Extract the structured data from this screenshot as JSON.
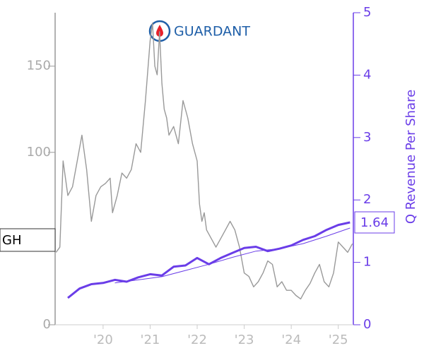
{
  "chart_data": {
    "type": "line",
    "ticker": "GH",
    "logo_text": "GUARDANT",
    "y2_label": "Q Revenue Per Share",
    "xlim": [
      2018.98,
      2025.32
    ],
    "xticks": [
      {
        "value": 2020,
        "label": "'20"
      },
      {
        "value": 2021,
        "label": "'21"
      },
      {
        "value": 2022,
        "label": "'22"
      },
      {
        "value": 2023,
        "label": "'23"
      },
      {
        "value": 2024,
        "label": "'24"
      },
      {
        "value": 2025,
        "label": "'25"
      }
    ],
    "ylim": [
      0,
      181
    ],
    "yticks": [
      0,
      100,
      150
    ],
    "y2lim": [
      0,
      5
    ],
    "y2ticks": [
      0,
      1,
      2,
      3,
      4,
      5
    ],
    "series": [
      {
        "color": "#999999",
        "x": [
          2019.0,
          2019.08,
          2019.15,
          2019.25,
          2019.35,
          2019.45,
          2019.55,
          2019.65,
          2019.75,
          2019.85,
          2019.95,
          2020.05,
          2020.15,
          2020.2,
          2020.3,
          2020.4,
          2020.5,
          2020.6,
          2020.7,
          2020.8,
          2020.9,
          2021.0,
          2021.05,
          2021.1,
          2021.15,
          2021.2,
          2021.25,
          2021.3,
          2021.35,
          2021.4,
          2021.5,
          2021.6,
          2021.7,
          2021.8,
          2021.9,
          2022.0,
          2022.05,
          2022.1,
          2022.15,
          2022.2,
          2022.3,
          2022.4,
          2022.5,
          2022.6,
          2022.7,
          2022.8,
          2022.9,
          2023.0,
          2023.1,
          2023.2,
          2023.3,
          2023.4,
          2023.5,
          2023.6,
          2023.7,
          2023.8,
          2023.9,
          2024.0,
          2024.1,
          2024.2,
          2024.3,
          2024.4,
          2024.5,
          2024.6,
          2024.7,
          2024.8,
          2024.9,
          2025.0,
          2025.1,
          2025.2,
          2025.3
        ],
        "values": [
          42,
          45,
          95,
          75,
          80,
          95,
          110,
          90,
          60,
          75,
          80,
          82,
          85,
          65,
          75,
          88,
          85,
          90,
          105,
          100,
          130,
          165,
          175,
          150,
          145,
          170,
          140,
          125,
          120,
          110,
          115,
          105,
          130,
          120,
          105,
          95,
          70,
          60,
          65,
          55,
          50,
          45,
          50,
          55,
          60,
          55,
          45,
          30,
          28,
          22,
          25,
          30,
          37,
          35,
          22,
          25,
          20,
          20,
          17,
          15,
          20,
          24,
          30,
          35,
          25,
          22,
          30,
          48,
          45,
          42,
          47
        ]
      },
      {
        "color": "#6a3de8",
        "axis": "y2",
        "x": [
          2019.25,
          2019.5,
          2019.75,
          2020.0,
          2020.25,
          2020.5,
          2020.75,
          2021.0,
          2021.25,
          2021.5,
          2021.75,
          2022.0,
          2022.25,
          2022.5,
          2022.75,
          2023.0,
          2023.25,
          2023.5,
          2023.75,
          2024.0,
          2024.25,
          2024.5,
          2024.75,
          2025.0,
          2025.25
        ],
        "values": [
          0.43,
          0.58,
          0.65,
          0.67,
          0.72,
          0.69,
          0.76,
          0.81,
          0.79,
          0.93,
          0.95,
          1.07,
          0.97,
          1.07,
          1.15,
          1.23,
          1.25,
          1.18,
          1.22,
          1.27,
          1.36,
          1.42,
          1.52,
          1.6,
          1.64
        ]
      },
      {
        "color": "#6a3de8",
        "axis": "y2",
        "x": [
          2020.25,
          2020.75,
          2021.25,
          2021.75,
          2022.25,
          2022.75,
          2023.25,
          2023.75,
          2024.25,
          2024.75,
          2025.25
        ],
        "values": [
          0.67,
          0.72,
          0.77,
          0.87,
          0.97,
          1.08,
          1.18,
          1.22,
          1.3,
          1.42,
          1.55
        ]
      }
    ]
  }
}
